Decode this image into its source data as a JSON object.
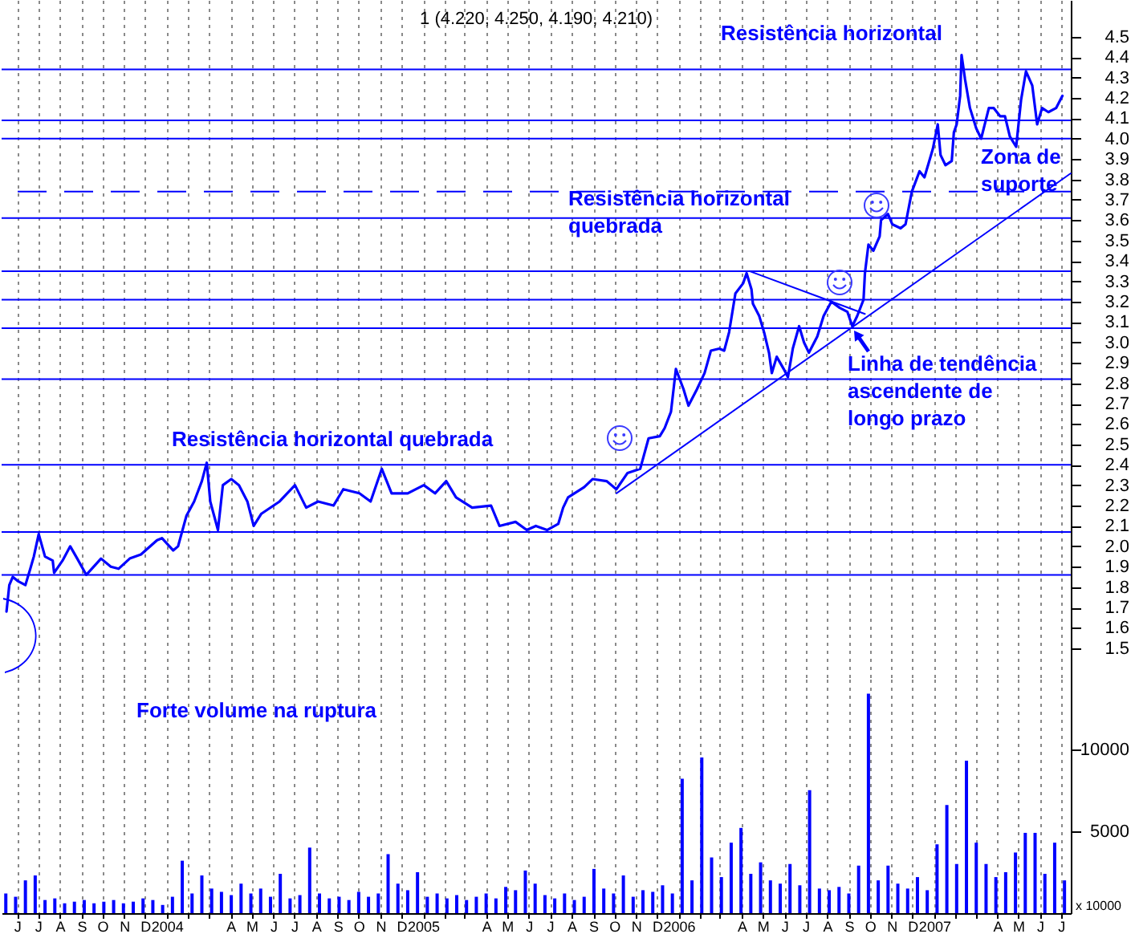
{
  "chart_data": [
    {
      "type": "line",
      "title": "1 (4.220, 4.250, 4.190, 4.210)",
      "x": [
        "2003-05-17",
        "2003-05-21",
        "2003-05-26",
        "2003-06-02",
        "2003-06-13",
        "2003-06-20",
        "2003-06-25",
        "2003-07-02",
        "2003-07-11",
        "2003-07-22",
        "2003-07-24",
        "2003-08-05",
        "2003-08-16",
        "2003-08-26",
        "2003-09-08",
        "2003-09-29",
        "2003-10-13",
        "2003-10-24",
        "2003-11-09",
        "2003-11-25",
        "2003-12-18",
        "2003-12-25",
        "2004-01-10",
        "2004-01-17",
        "2004-01-29",
        "2004-02-09",
        "2004-02-20",
        "2004-02-27",
        "2004-03-03",
        "2004-03-14",
        "2004-03-21",
        "2004-04-02",
        "2004-04-13",
        "2004-04-25",
        "2004-05-04",
        "2004-05-15",
        "2004-06-10",
        "2004-07-02",
        "2004-07-18",
        "2004-08-04",
        "2004-08-26",
        "2004-09-09",
        "2004-10-02",
        "2004-10-18",
        "2004-11-03",
        "2004-11-17",
        "2004-12-10",
        "2005-01-02",
        "2005-01-18",
        "2005-02-03",
        "2005-02-17",
        "2005-03-12",
        "2005-04-08",
        "2005-04-20",
        "2005-05-13",
        "2005-05-29",
        "2005-06-11",
        "2005-06-27",
        "2005-07-13",
        "2005-07-20",
        "2005-07-27",
        "2005-08-19",
        "2005-08-31",
        "2005-09-20",
        "2005-10-04",
        "2005-10-20",
        "2005-11-07",
        "2005-11-19",
        "2005-12-05",
        "2005-12-12",
        "2005-12-21",
        "2005-12-28",
        "2006-01-08",
        "2006-01-15",
        "2006-01-27",
        "2006-02-07",
        "2006-02-16",
        "2006-02-28",
        "2006-03-07",
        "2006-03-14",
        "2006-03-23",
        "2006-04-03",
        "2006-04-08",
        "2006-04-15",
        "2006-04-17",
        "2006-04-26",
        "2006-05-03",
        "2006-05-10",
        "2006-05-14",
        "2006-05-21",
        "2006-05-31",
        "2006-06-06",
        "2006-06-13",
        "2006-06-22",
        "2006-06-29",
        "2006-07-06",
        "2006-07-18",
        "2006-07-27",
        "2006-08-07",
        "2006-08-19",
        "2006-08-30",
        "2006-09-06",
        "2006-09-13",
        "2006-09-22",
        "2006-09-24",
        "2006-09-29",
        "2006-10-06",
        "2006-10-15",
        "2006-10-17",
        "2006-10-27",
        "2006-11-02",
        "2006-11-14",
        "2006-11-21",
        "2006-11-30",
        "2006-12-11",
        "2006-12-18",
        "2006-12-30",
        "2007-01-06",
        "2007-01-10",
        "2007-01-17",
        "2007-01-26",
        "2007-01-29",
        "2007-02-02",
        "2007-02-07",
        "2007-02-09",
        "2007-02-14",
        "2007-02-21",
        "2007-03-02",
        "2007-03-09",
        "2007-03-20",
        "2007-03-27",
        "2007-04-05",
        "2007-04-12",
        "2007-04-19",
        "2007-04-28",
        "2007-05-05",
        "2007-05-12",
        "2007-05-21",
        "2007-05-28",
        "2007-06-04",
        "2007-06-13",
        "2007-06-24",
        "2007-07-03"
      ],
      "series": [
        {
          "color": "#0000ff",
          "values": [
            1.68,
            1.81,
            1.85,
            1.83,
            1.81,
            1.89,
            1.95,
            2.06,
            1.95,
            1.93,
            1.87,
            1.93,
            2.0,
            1.94,
            1.86,
            1.94,
            1.9,
            1.89,
            1.94,
            1.96,
            2.03,
            2.04,
            1.98,
            2.0,
            2.15,
            2.22,
            2.32,
            2.41,
            2.22,
            2.08,
            2.3,
            2.33,
            2.3,
            2.22,
            2.1,
            2.16,
            2.22,
            2.3,
            2.19,
            2.22,
            2.2,
            2.28,
            2.26,
            2.22,
            2.38,
            2.26,
            2.26,
            2.3,
            2.26,
            2.32,
            2.24,
            2.19,
            2.2,
            2.1,
            2.12,
            2.08,
            2.1,
            2.08,
            2.11,
            2.19,
            2.24,
            2.29,
            2.33,
            2.32,
            2.28,
            2.36,
            2.38,
            2.53,
            2.54,
            2.58,
            2.66,
            2.87,
            2.77,
            2.69,
            2.77,
            2.85,
            2.96,
            2.97,
            2.96,
            3.05,
            3.24,
            3.29,
            3.34,
            3.26,
            3.19,
            3.13,
            3.05,
            2.95,
            2.85,
            2.93,
            2.87,
            2.83,
            2.97,
            3.08,
            3.0,
            2.95,
            3.03,
            3.13,
            3.2,
            3.17,
            3.15,
            3.08,
            3.13,
            3.21,
            3.34,
            3.48,
            3.45,
            3.52,
            3.6,
            3.63,
            3.58,
            3.56,
            3.58,
            3.74,
            3.84,
            3.81,
            3.95,
            4.07,
            3.92,
            3.87,
            3.89,
            4.03,
            4.07,
            4.21,
            4.41,
            4.29,
            4.15,
            4.05,
            4.0,
            4.15,
            4.15,
            4.11,
            4.11,
            4.01,
            3.96,
            4.19,
            4.33,
            4.26,
            4.07,
            4.15,
            4.13,
            4.15,
            4.21
          ]
        },
        {
          "type": "line",
          "color": "#0000ff",
          "x": [
            "2005-10-04",
            "2007-07-15"
          ],
          "values": [
            2.26,
            3.83
          ]
        },
        {
          "type": "line",
          "color": "#0000ff",
          "x": [
            "2006-04-12",
            "2006-09-24"
          ],
          "values": [
            3.35,
            3.14
          ]
        }
      ],
      "xlim": [
        "2003-05-10",
        "2007-07-15"
      ],
      "xticks": [
        {
          "value": "2003-06",
          "label": null
        },
        {
          "value": "2003-07",
          "label": null
        },
        {
          "value": "2003-08",
          "label": null
        },
        {
          "value": "2003-09",
          "label": null
        },
        {
          "value": "2003-10",
          "label": null
        },
        {
          "value": "2003-11",
          "label": null
        },
        {
          "value": "2003-12",
          "label": null
        },
        {
          "value": "2004-01",
          "label": null
        },
        {
          "value": "2004-02",
          "label": null
        },
        {
          "value": "2004-03",
          "label": null
        },
        {
          "value": "2004-04",
          "label": null
        },
        {
          "value": "2004-05",
          "label": null
        },
        {
          "value": "2004-06",
          "label": null
        },
        {
          "value": "2004-07",
          "label": null
        },
        {
          "value": "2004-08",
          "label": null
        },
        {
          "value": "2004-09",
          "label": null
        },
        {
          "value": "2004-10",
          "label": null
        },
        {
          "value": "2004-11",
          "label": null
        },
        {
          "value": "2004-12",
          "label": null
        },
        {
          "value": "2005-01",
          "label": null
        },
        {
          "value": "2005-02",
          "label": null
        },
        {
          "value": "2005-03",
          "label": null
        },
        {
          "value": "2005-04",
          "label": null
        },
        {
          "value": "2005-05",
          "label": null
        },
        {
          "value": "2005-06",
          "label": null
        },
        {
          "value": "2005-07",
          "label": null
        },
        {
          "value": "2005-08",
          "label": null
        },
        {
          "value": "2005-09",
          "label": null
        },
        {
          "value": "2005-10",
          "label": null
        },
        {
          "value": "2005-11",
          "label": null
        },
        {
          "value": "2005-12",
          "label": null
        },
        {
          "value": "2006-01",
          "label": null
        },
        {
          "value": "2006-02",
          "label": null
        },
        {
          "value": "2006-03",
          "label": null
        },
        {
          "value": "2006-04",
          "label": null
        },
        {
          "value": "2006-05",
          "label": null
        },
        {
          "value": "2006-06",
          "label": null
        },
        {
          "value": "2006-07",
          "label": null
        },
        {
          "value": "2006-08",
          "label": null
        },
        {
          "value": "2006-09",
          "label": null
        },
        {
          "value": "2006-10",
          "label": null
        },
        {
          "value": "2006-11",
          "label": null
        },
        {
          "value": "2006-12",
          "label": null
        },
        {
          "value": "2007-01",
          "label": null
        },
        {
          "value": "2007-02",
          "label": null
        },
        {
          "value": "2007-03",
          "label": null
        },
        {
          "value": "2007-04",
          "label": null
        },
        {
          "value": "2007-05",
          "label": null
        },
        {
          "value": "2007-06",
          "label": null
        },
        {
          "value": "2007-07",
          "label": null
        }
      ],
      "ylim": [
        1.35,
        4.68
      ],
      "yticks": [
        1.5,
        1.6,
        1.7,
        1.8,
        1.9,
        {
          "value": 2,
          "label": "2.0"
        },
        2.1,
        2.2,
        2.3,
        2.4,
        2.5,
        2.6,
        2.7,
        2.8,
        2.9,
        {
          "value": 3,
          "label": "3.0"
        },
        3.1,
        3.2,
        3.3,
        3.4,
        3.5,
        3.6,
        3.7,
        3.8,
        3.9,
        {
          "value": 4,
          "label": "4.0"
        },
        4.1,
        4.2,
        4.3,
        4.4,
        4.5
      ],
      "ref_lines": [
        {
          "axis": "y",
          "value": 4.34,
          "color": "#0000ff"
        },
        {
          "axis": "y",
          "value": 4.09,
          "color": "#0000ff"
        },
        {
          "axis": "y",
          "value": 4.0,
          "color": "#0000ff"
        },
        {
          "axis": "y",
          "value": 3.74,
          "color": "#0000ff",
          "line_style": "dashed"
        },
        {
          "axis": "y",
          "value": 3.61,
          "color": "#0000ff"
        },
        {
          "axis": "y",
          "value": 3.35,
          "color": "#0000ff"
        },
        {
          "axis": "y",
          "value": 3.21,
          "color": "#0000ff"
        },
        {
          "axis": "y",
          "value": 3.07,
          "color": "#0000ff"
        },
        {
          "axis": "y",
          "value": 2.82,
          "color": "#0000ff"
        },
        {
          "axis": "y",
          "value": 2.4,
          "color": "#0000ff"
        },
        {
          "axis": "y",
          "value": 2.07,
          "color": "#0000ff"
        },
        {
          "axis": "y",
          "value": 1.86,
          "color": "#0000ff"
        }
      ],
      "annotations": [
        "Resistência horizontal",
        "Resistência horizontal\nquebrada",
        "Zona de\nsuporte",
        "Linha de tendência\nascendente de\nlongo prazo",
        "Resistência horizontal quebrada"
      ],
      "grid": "x",
      "tick_labels": "y"
    },
    {
      "type": "bar",
      "x": [
        "2003-05-16",
        "2003-05-30",
        "2003-06-13",
        "2003-06-27",
        "2003-07-11",
        "2003-07-25",
        "2003-08-08",
        "2003-08-22",
        "2003-09-05",
        "2003-09-19",
        "2003-10-03",
        "2003-10-17",
        "2003-10-31",
        "2003-11-14",
        "2003-11-28",
        "2003-12-12",
        "2003-12-26",
        "2004-01-09",
        "2004-01-23",
        "2004-02-06",
        "2004-02-20",
        "2004-03-05",
        "2004-03-19",
        "2004-04-02",
        "2004-04-16",
        "2004-04-30",
        "2004-05-14",
        "2004-05-28",
        "2004-06-11",
        "2004-06-25",
        "2004-07-09",
        "2004-07-23",
        "2004-08-06",
        "2004-08-20",
        "2004-09-03",
        "2004-09-17",
        "2004-10-01",
        "2004-10-15",
        "2004-10-29",
        "2004-11-12",
        "2004-11-26",
        "2004-12-10",
        "2004-12-24",
        "2005-01-07",
        "2005-01-21",
        "2005-02-04",
        "2005-02-18",
        "2005-03-04",
        "2005-03-18",
        "2005-04-01",
        "2005-04-15",
        "2005-04-29",
        "2005-05-13",
        "2005-05-27",
        "2005-06-10",
        "2005-06-24",
        "2005-07-08",
        "2005-07-22",
        "2005-08-05",
        "2005-08-19",
        "2005-09-02",
        "2005-09-16",
        "2005-09-30",
        "2005-10-14",
        "2005-10-28",
        "2005-11-11",
        "2005-11-25",
        "2005-12-09",
        "2005-12-23",
        "2006-01-06",
        "2006-01-20",
        "2006-02-03",
        "2006-02-17",
        "2006-03-03",
        "2006-03-17",
        "2006-03-31",
        "2006-04-14",
        "2006-04-28",
        "2006-05-12",
        "2006-05-26",
        "2006-06-09",
        "2006-06-23",
        "2006-07-07",
        "2006-07-21",
        "2006-08-04",
        "2006-08-18",
        "2006-09-01",
        "2006-09-15",
        "2006-09-29",
        "2006-10-13",
        "2006-10-27",
        "2006-11-10",
        "2006-11-24",
        "2006-12-08",
        "2006-12-22",
        "2007-01-05",
        "2007-01-19",
        "2007-02-02",
        "2007-02-16",
        "2007-03-02",
        "2007-03-16",
        "2007-03-30",
        "2007-04-13",
        "2007-04-27",
        "2007-05-11",
        "2007-05-25",
        "2007-06-08",
        "2007-06-22",
        "2007-07-06"
      ],
      "series": [
        {
          "color": "#0000ff",
          "values": [
            1200,
            1000,
            2000,
            2300,
            800,
            900,
            600,
            700,
            800,
            600,
            700,
            800,
            600,
            700,
            900,
            800,
            500,
            1000,
            3200,
            1200,
            2300,
            1500,
            1300,
            1100,
            1800,
            1200,
            1500,
            1000,
            2400,
            900,
            1100,
            4000,
            1200,
            900,
            1000,
            800,
            1300,
            1000,
            1200,
            3600,
            1800,
            1400,
            2500,
            1000,
            1200,
            900,
            1100,
            800,
            1000,
            1200,
            900,
            1600,
            1400,
            2600,
            1800,
            1100,
            900,
            1200,
            800,
            1000,
            2700,
            1500,
            1200,
            2300,
            1000,
            1400,
            1300,
            1700,
            1200,
            8200,
            2000,
            9500,
            3400,
            2200,
            4300,
            5200,
            2400,
            3100,
            2000,
            1800,
            3000,
            1700,
            7500,
            1500,
            1400,
            1600,
            1200,
            2900,
            13400,
            2000,
            2900,
            1800,
            1500,
            2200,
            1400,
            4200,
            6600,
            3000,
            9300,
            4300,
            3000,
            2200,
            2500,
            3700,
            4900,
            4900,
            2400,
            4300,
            2000
          ]
        }
      ],
      "xlim": [
        "2003-05-10",
        "2007-07-15"
      ],
      "xticks": [
        {
          "value": "2003-06",
          "label": "J"
        },
        {
          "value": "2003-07",
          "label": "J"
        },
        {
          "value": "2003-08",
          "label": "A"
        },
        {
          "value": "2003-09",
          "label": "S"
        },
        {
          "value": "2003-10",
          "label": "O"
        },
        {
          "value": "2003-11",
          "label": "N"
        },
        {
          "value": "2003-12",
          "label": "D"
        },
        {
          "value": "2004-01",
          "label": "2004"
        },
        {
          "value": "2004-02",
          "label": null
        },
        {
          "value": "2004-03",
          "label": null
        },
        {
          "value": "2004-04",
          "label": "A"
        },
        {
          "value": "2004-05",
          "label": "M"
        },
        {
          "value": "2004-06",
          "label": "J"
        },
        {
          "value": "2004-07",
          "label": "J"
        },
        {
          "value": "2004-08",
          "label": "A"
        },
        {
          "value": "2004-09",
          "label": "S"
        },
        {
          "value": "2004-10",
          "label": "O"
        },
        {
          "value": "2004-11",
          "label": "N"
        },
        {
          "value": "2004-12",
          "label": "D"
        },
        {
          "value": "2005-01",
          "label": "2005"
        },
        {
          "value": "2005-02",
          "label": null
        },
        {
          "value": "2005-03",
          "label": null
        },
        {
          "value": "2005-04",
          "label": "A"
        },
        {
          "value": "2005-05",
          "label": "M"
        },
        {
          "value": "2005-06",
          "label": "J"
        },
        {
          "value": "2005-07",
          "label": "J"
        },
        {
          "value": "2005-08",
          "label": "A"
        },
        {
          "value": "2005-09",
          "label": "S"
        },
        {
          "value": "2005-10",
          "label": "O"
        },
        {
          "value": "2005-11",
          "label": "N"
        },
        {
          "value": "2005-12",
          "label": "D"
        },
        {
          "value": "2006-01",
          "label": "2006"
        },
        {
          "value": "2006-02",
          "label": null
        },
        {
          "value": "2006-03",
          "label": null
        },
        {
          "value": "2006-04",
          "label": "A"
        },
        {
          "value": "2006-05",
          "label": "M"
        },
        {
          "value": "2006-06",
          "label": "J"
        },
        {
          "value": "2006-07",
          "label": "J"
        },
        {
          "value": "2006-08",
          "label": "A"
        },
        {
          "value": "2006-09",
          "label": "S"
        },
        {
          "value": "2006-10",
          "label": "O"
        },
        {
          "value": "2006-11",
          "label": "N"
        },
        {
          "value": "2006-12",
          "label": "D"
        },
        {
          "value": "2007-01",
          "label": "2007"
        },
        {
          "value": "2007-02",
          "label": null
        },
        {
          "value": "2007-03",
          "label": null
        },
        {
          "value": "2007-04",
          "label": "A"
        },
        {
          "value": "2007-05",
          "label": "M"
        },
        {
          "value": "2007-06",
          "label": "J"
        },
        {
          "value": "2007-07",
          "label": "J"
        }
      ],
      "ylim": [
        0,
        14300
      ],
      "yticks": [
        5000,
        10000
      ],
      "annotations": [
        "Forte volume na ruptura",
        "x 10000"
      ],
      "grid": "x"
    }
  ]
}
